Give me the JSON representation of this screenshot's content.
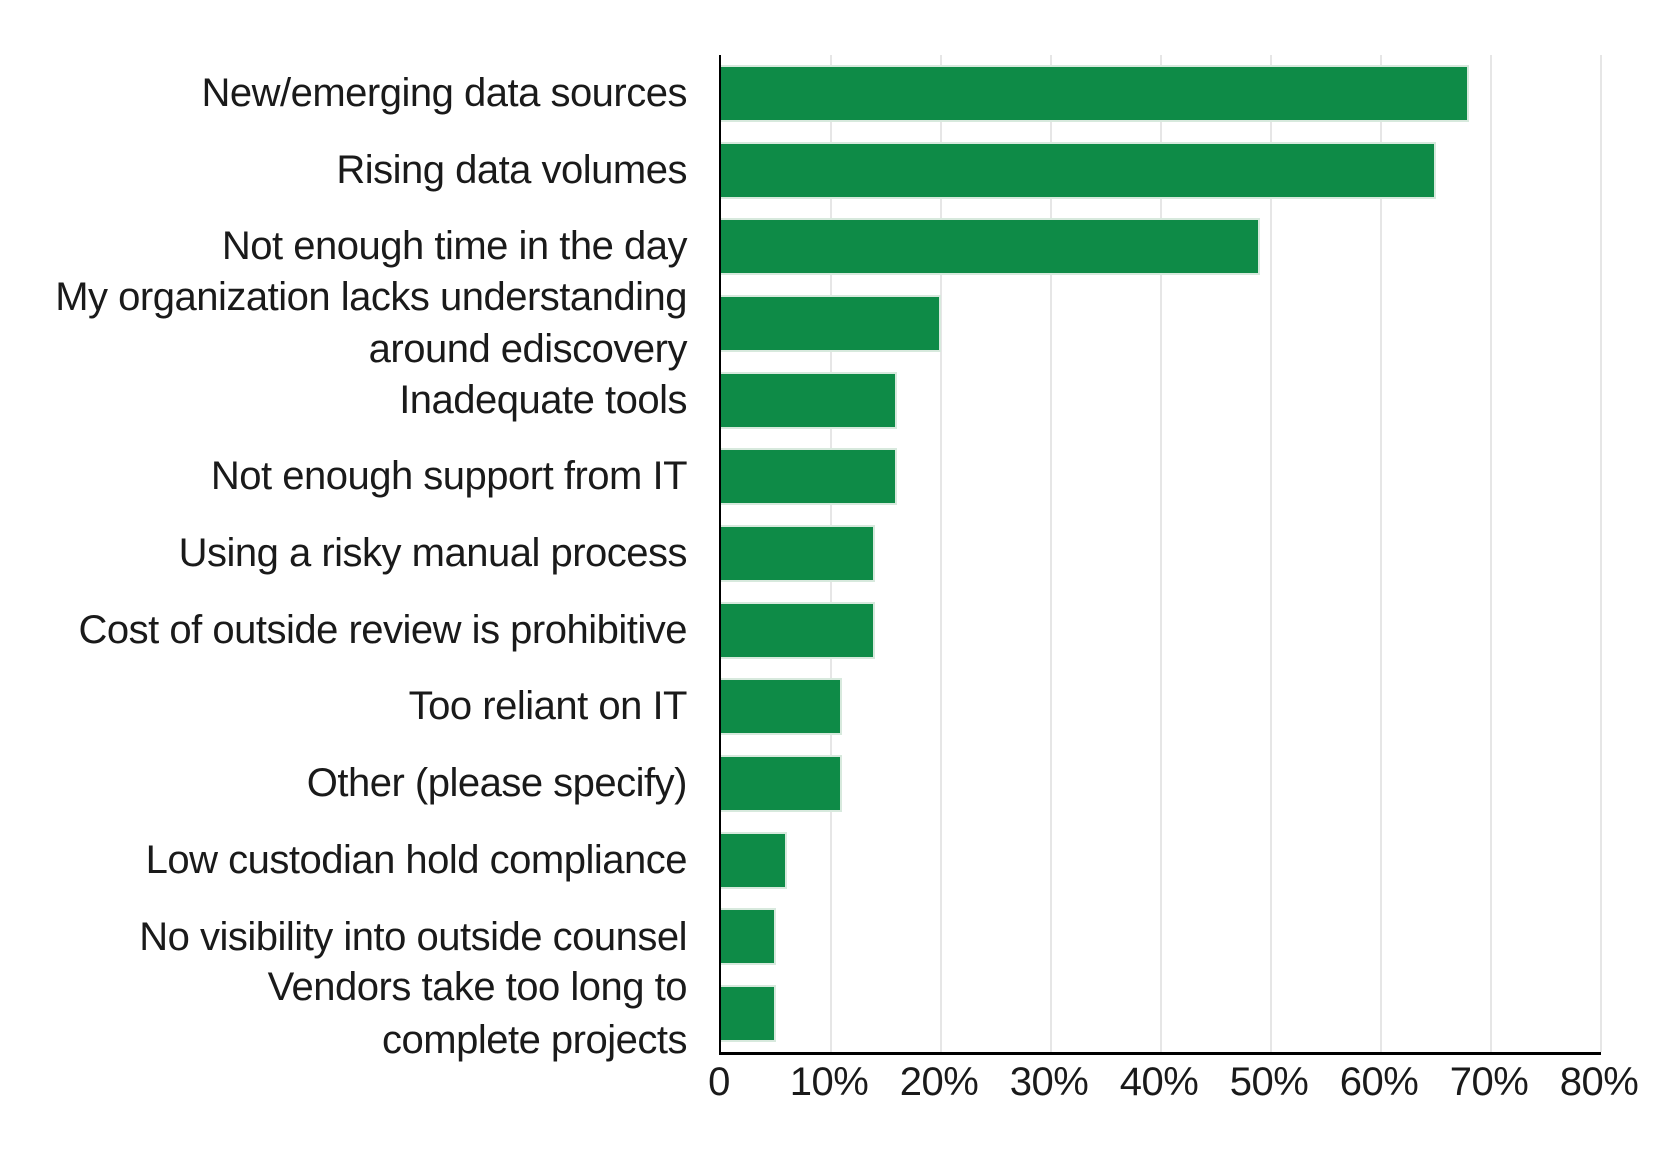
{
  "chart_data": {
    "type": "bar",
    "orientation": "horizontal",
    "title": "",
    "xlabel": "",
    "ylabel": "",
    "categories": [
      "New/emerging data sources",
      "Rising data volumes",
      "Not enough time in the day",
      "My organization lacks understanding\naround ediscovery",
      "Inadequate tools",
      "Not enough support from IT",
      "Using a risky manual process",
      "Cost of outside review is prohibitive",
      "Too reliant on IT",
      "Other (please specify)",
      "Low custodian hold compliance",
      "No visibility into outside counsel",
      "Vendors take too long to\ncomplete projects"
    ],
    "values": [
      68,
      65,
      49,
      20,
      16,
      16,
      14,
      14,
      11,
      11,
      6,
      5,
      5
    ],
    "unit": "%",
    "xlim": [
      0,
      80
    ],
    "xticks": [
      0,
      10,
      20,
      30,
      40,
      50,
      60,
      70,
      80
    ],
    "xtick_labels": [
      "0",
      "10%",
      "20%",
      "30%",
      "40%",
      "50%",
      "60%",
      "70%",
      "80%"
    ],
    "grid": "vertical-gridlines-only",
    "legend": "none",
    "colors": {
      "bar_fill": "#0e8b47",
      "bar_edge": "#d7e9dd",
      "gridline": "#e6e6e6",
      "axis": "#000000",
      "text": "#1a1a1a",
      "background": "#ffffff"
    }
  }
}
